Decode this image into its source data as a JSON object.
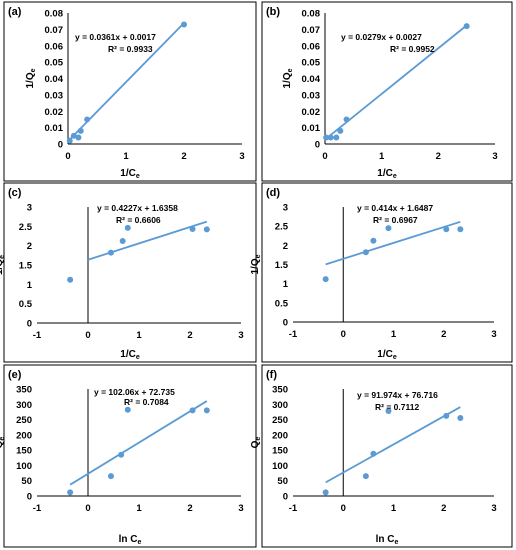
{
  "chart_data": [
    {
      "type": "scatter",
      "panel_label": "(a)",
      "xlabel": "1/C",
      "xlabel_sub": "e",
      "ylabel": "1/Q",
      "ylabel_sub": "e",
      "xlim": [
        0,
        3
      ],
      "ylim": [
        0,
        0.08
      ],
      "x_ticks": [
        "0",
        "1",
        "2",
        "3"
      ],
      "y_ticks": [
        "0",
        "0.01",
        "0.02",
        "0.03",
        "0.04",
        "0.05",
        "0.06",
        "0.07",
        "0.08"
      ],
      "x_tick_values": [
        0,
        1,
        2,
        3
      ],
      "y_tick_values": [
        0,
        0.01,
        0.02,
        0.03,
        0.04,
        0.05,
        0.06,
        0.07,
        0.08
      ],
      "points": [
        [
          0.03,
          0.002
        ],
        [
          0.1,
          0.005
        ],
        [
          0.18,
          0.004
        ],
        [
          0.22,
          0.008
        ],
        [
          0.33,
          0.015
        ],
        [
          2.0,
          0.073
        ]
      ],
      "trendline": {
        "slope": 0.0361,
        "intercept": 0.0017,
        "x_range": [
          0,
          2
        ]
      },
      "equation": "y = 0.0361x + 0.0017",
      "r2": "R² = 0.9933"
    },
    {
      "type": "scatter",
      "panel_label": "(b)",
      "xlabel": "1/C",
      "xlabel_sub": "e",
      "ylabel": "1/Q",
      "ylabel_sub": "e",
      "xlim": [
        0,
        3
      ],
      "ylim": [
        0,
        0.08
      ],
      "x_ticks": [
        "0",
        "1",
        "2",
        "3"
      ],
      "y_ticks": [
        "0",
        "0.01",
        "0.02",
        "0.03",
        "0.04",
        "0.05",
        "0.06",
        "0.07",
        "0.08"
      ],
      "x_tick_values": [
        0,
        1,
        2,
        3
      ],
      "y_tick_values": [
        0,
        0.01,
        0.02,
        0.03,
        0.04,
        0.05,
        0.06,
        0.07,
        0.08
      ],
      "points": [
        [
          0.02,
          0.004
        ],
        [
          0.1,
          0.004
        ],
        [
          0.2,
          0.004
        ],
        [
          0.27,
          0.008
        ],
        [
          0.38,
          0.015
        ],
        [
          2.5,
          0.072
        ]
      ],
      "trendline": {
        "slope": 0.0279,
        "intercept": 0.0027,
        "x_range": [
          0,
          2.5
        ]
      },
      "equation": "y = 0.0279x + 0.0027",
      "r2": "R² = 0.9952"
    },
    {
      "type": "scatter",
      "panel_label": "(c)",
      "xlabel": "1/C",
      "xlabel_sub": "e",
      "ylabel": "1/Q",
      "ylabel_sub": "e",
      "xlim": [
        -1,
        3
      ],
      "ylim": [
        0,
        3
      ],
      "x_ticks": [
        "-1",
        "0",
        "1",
        "2",
        "3"
      ],
      "y_ticks": [
        "0",
        "0.5",
        "1",
        "1.5",
        "2",
        "2.5",
        "3"
      ],
      "x_tick_values": [
        -1,
        0,
        1,
        2,
        3
      ],
      "y_tick_values": [
        0,
        0.5,
        1,
        1.5,
        2,
        2.5,
        3
      ],
      "points": [
        [
          -0.35,
          1.12
        ],
        [
          0.45,
          1.82
        ],
        [
          0.68,
          2.12
        ],
        [
          0.78,
          2.46
        ],
        [
          2.05,
          2.43
        ],
        [
          2.33,
          2.42
        ]
      ],
      "trendline": {
        "slope": 0.4227,
        "intercept": 1.6358,
        "x_range": [
          0,
          2.33
        ]
      },
      "equation": "y = 0.4227x + 1.6358",
      "r2": "R² = 0.6606"
    },
    {
      "type": "scatter",
      "panel_label": "(d)",
      "xlabel": "1/C",
      "xlabel_sub": "e",
      "ylabel": "1/Q",
      "ylabel_sub": "e",
      "xlim": [
        -1,
        3
      ],
      "ylim": [
        0,
        3
      ],
      "x_ticks": [
        "-1",
        "0",
        "1",
        "2",
        "3"
      ],
      "y_ticks": [
        "0",
        "0.5",
        "1",
        "1.5",
        "2",
        "2.5",
        "3"
      ],
      "x_tick_values": [
        -1,
        0,
        1,
        2,
        3
      ],
      "y_tick_values": [
        0,
        0.5,
        1,
        1.5,
        2,
        2.5,
        3
      ],
      "points": [
        [
          -0.35,
          1.12
        ],
        [
          0.45,
          1.82
        ],
        [
          0.6,
          2.12
        ],
        [
          0.9,
          2.45
        ],
        [
          2.05,
          2.42
        ],
        [
          2.33,
          2.42
        ]
      ],
      "trendline": {
        "slope": 0.414,
        "intercept": 1.6487,
        "x_range": [
          -0.35,
          2.33
        ]
      },
      "equation": "y = 0.414x + 1.6487",
      "r2": "R² = 0.6967"
    },
    {
      "type": "scatter",
      "panel_label": "(e)",
      "xlabel": "ln C",
      "xlabel_sub": "e",
      "ylabel": "Q",
      "ylabel_sub": "e",
      "xlim": [
        -1,
        3
      ],
      "ylim": [
        0,
        350
      ],
      "x_ticks": [
        "-1",
        "0",
        "1",
        "2",
        "3"
      ],
      "y_ticks": [
        "0",
        "50",
        "100",
        "150",
        "200",
        "250",
        "300",
        "350"
      ],
      "x_tick_values": [
        -1,
        0,
        1,
        2,
        3
      ],
      "y_tick_values": [
        0,
        50,
        100,
        150,
        200,
        250,
        300,
        350
      ],
      "points": [
        [
          -0.35,
          12
        ],
        [
          0.45,
          65
        ],
        [
          0.65,
          135
        ],
        [
          0.78,
          282
        ],
        [
          2.05,
          280
        ],
        [
          2.33,
          280
        ]
      ],
      "trendline": {
        "slope": 102.06,
        "intercept": 72.735,
        "x_range": [
          -0.35,
          2.33
        ]
      },
      "equation": "y = 102.06x + 72.735",
      "r2": "R² = 0.7084"
    },
    {
      "type": "scatter",
      "panel_label": "(f)",
      "xlabel": "ln C",
      "xlabel_sub": "e",
      "ylabel": "Q",
      "ylabel_sub": "e",
      "xlim": [
        -1,
        3
      ],
      "ylim": [
        0,
        350
      ],
      "x_ticks": [
        "-1",
        "0",
        "1",
        "2",
        "3"
      ],
      "y_ticks": [
        "0",
        "50",
        "100",
        "150",
        "200",
        "250",
        "300",
        "350"
      ],
      "x_tick_values": [
        -1,
        0,
        1,
        2,
        3
      ],
      "y_tick_values": [
        0,
        50,
        100,
        150,
        200,
        250,
        300,
        350
      ],
      "points": [
        [
          -0.35,
          12
        ],
        [
          0.45,
          65
        ],
        [
          0.6,
          138
        ],
        [
          0.9,
          278
        ],
        [
          2.05,
          262
        ],
        [
          2.33,
          255
        ]
      ],
      "trendline": {
        "slope": 91.974,
        "intercept": 76.716,
        "x_range": [
          -0.35,
          2.33
        ]
      },
      "equation": "y = 91.974x + 76.716",
      "r2": "R² = 0.7112"
    }
  ]
}
